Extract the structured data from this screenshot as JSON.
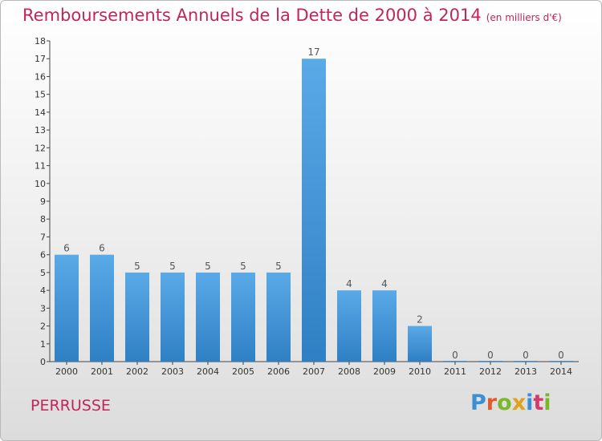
{
  "header": {
    "title": "Remboursements Annuels de la Dette de 2000 à 2014",
    "unit": "(en milliers d'€)"
  },
  "footer": {
    "place": "PERRUSSE",
    "logo_text": "Proxiti",
    "logo_colors": [
      "#3b8fd4",
      "#e05d2b",
      "#7ab829",
      "#e0a21a",
      "#3b8fd4",
      "#d43a6f",
      "#7ab829"
    ]
  },
  "chart_data": {
    "type": "bar",
    "categories": [
      "2000",
      "2001",
      "2002",
      "2003",
      "2004",
      "2005",
      "2006",
      "2007",
      "2008",
      "2009",
      "2010",
      "2011",
      "2012",
      "2013",
      "2014"
    ],
    "values": [
      6,
      6,
      5,
      5,
      5,
      5,
      5,
      17,
      4,
      4,
      2,
      0,
      0,
      0,
      0
    ],
    "data_labels": [
      "6",
      "6",
      "5",
      "5",
      "5",
      "5",
      "5",
      "17",
      "4",
      "4",
      "2",
      "0",
      "0",
      "0",
      "0"
    ],
    "ylim": [
      0,
      18
    ],
    "yticks": [
      0,
      1,
      2,
      3,
      4,
      5,
      6,
      7,
      8,
      9,
      10,
      11,
      12,
      13,
      14,
      15,
      16,
      17,
      18
    ],
    "bar_color": "#3d93d8",
    "bar_color_light": "#64b0ea",
    "label_color": "#555555",
    "grid": false
  }
}
